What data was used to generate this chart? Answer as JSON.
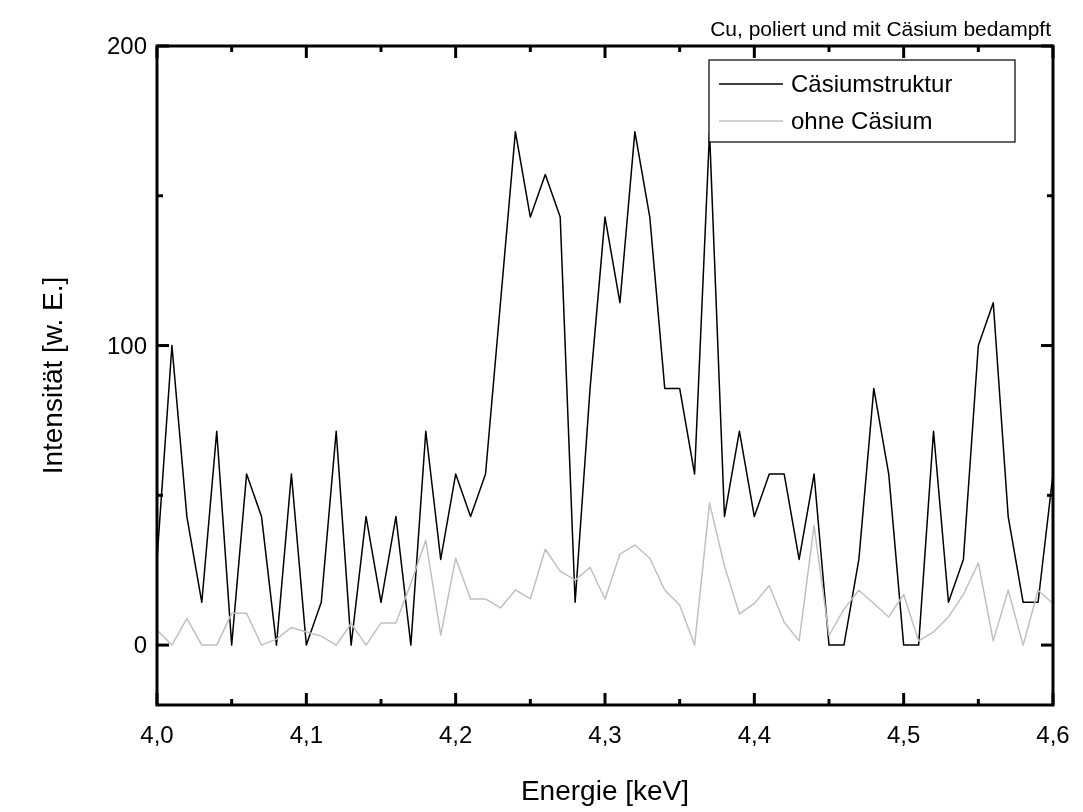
{
  "chart_data": {
    "type": "line",
    "title": "Cu, poliert und mit Cäsium bedampft",
    "xlabel": "Energie [keV]",
    "ylabel": "Intensität [w. E.]",
    "x": [
      4.0,
      4.01,
      4.02,
      4.03,
      4.04,
      4.05,
      4.06,
      4.07,
      4.08,
      4.09,
      4.1,
      4.11,
      4.12,
      4.13,
      4.14,
      4.15,
      4.16,
      4.17,
      4.18,
      4.19,
      4.2,
      4.21,
      4.22,
      4.23,
      4.24,
      4.25,
      4.26,
      4.27,
      4.28,
      4.29,
      4.3,
      4.31,
      4.32,
      4.33,
      4.34,
      4.35,
      4.36,
      4.37,
      4.38,
      4.39,
      4.4,
      4.41,
      4.42,
      4.43,
      4.44,
      4.45,
      4.46,
      4.47,
      4.48,
      4.49,
      4.5,
      4.51,
      4.52,
      4.53,
      4.54,
      4.55,
      4.56,
      4.57,
      4.58,
      4.59,
      4.6
    ],
    "series": [
      {
        "name": "Cäsiumstruktur",
        "color": "#000000",
        "values": [
          28.6,
          100,
          42.9,
          14.3,
          71.4,
          0,
          57.1,
          42.9,
          0,
          57.1,
          0,
          14.3,
          71.4,
          0,
          42.9,
          14.3,
          42.9,
          0,
          71.4,
          28.6,
          57.1,
          42.9,
          57.1,
          114.3,
          171.4,
          142.9,
          157.1,
          142.9,
          14.3,
          85.7,
          142.9,
          114.3,
          171.4,
          142.9,
          85.7,
          85.7,
          57.1,
          171.4,
          42.9,
          71.4,
          42.9,
          57.1,
          57.1,
          28.6,
          57.1,
          0,
          0,
          28.6,
          85.7,
          57.1,
          0,
          0,
          71.4,
          14.3,
          28.6,
          100,
          114.3,
          42.9,
          14.3,
          14.3,
          57.1
        ]
      },
      {
        "name": "ohne Cäsium",
        "color": "#c0c0c0",
        "values": [
          5,
          0,
          8.9,
          0,
          0,
          10.6,
          10.6,
          0,
          2,
          5.9,
          4.4,
          3,
          0,
          7.2,
          0,
          7.4,
          7.4,
          20.6,
          35,
          3.3,
          29,
          15.4,
          15.4,
          12.4,
          18.4,
          15.4,
          32,
          24.7,
          21.7,
          26,
          15.4,
          30.4,
          33.4,
          29,
          18.4,
          13.4,
          0,
          47.4,
          26.4,
          10.4,
          13.9,
          19.9,
          7.6,
          1.4,
          39.9,
          3.2,
          12,
          18.3,
          13.9,
          9.4,
          16.9,
          1.4,
          4.4,
          9.4,
          16.9,
          27.4,
          1.4,
          18.3,
          0,
          18.3,
          13.9
        ]
      }
    ],
    "xlim": [
      4.0,
      4.6
    ],
    "xticks": [
      {
        "value": 4.0,
        "label": "4,0"
      },
      {
        "value": 4.05,
        "label": null
      },
      {
        "value": 4.1,
        "label": "4,1"
      },
      {
        "value": 4.15,
        "label": null
      },
      {
        "value": 4.2,
        "label": "4,2"
      },
      {
        "value": 4.25,
        "label": null
      },
      {
        "value": 4.3,
        "label": "4,3"
      },
      {
        "value": 4.35,
        "label": null
      },
      {
        "value": 4.4,
        "label": "4,4"
      },
      {
        "value": 4.45,
        "label": null
      },
      {
        "value": 4.5,
        "label": "4,5"
      },
      {
        "value": 4.55,
        "label": null
      },
      {
        "value": 4.6,
        "label": "4,6"
      }
    ],
    "ylim": [
      -20,
      200
    ],
    "yticks": [
      0,
      {
        "value": 50,
        "label": null
      },
      100,
      {
        "value": 150,
        "label": null
      },
      200
    ],
    "grid": false,
    "legend": "top right",
    "marker": "none",
    "line_style": "solid"
  }
}
